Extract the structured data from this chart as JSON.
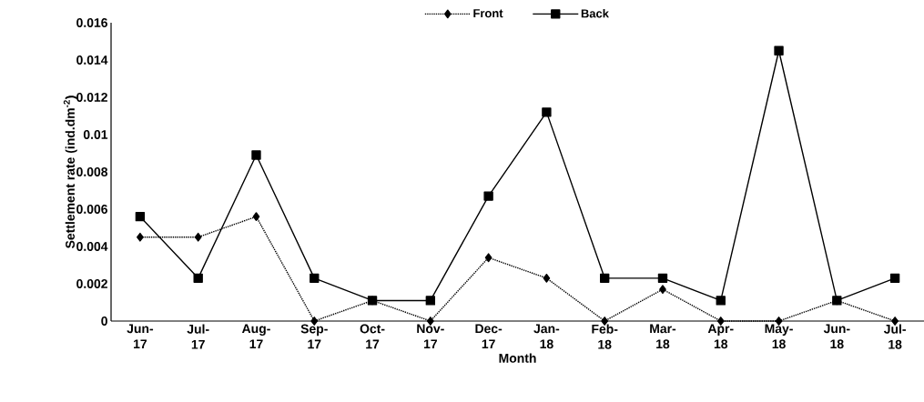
{
  "chart_data": {
    "type": "line",
    "xlabel": "Month",
    "ylabel": "Settlement  rate (ind.dm$^{-2}$)",
    "categories": [
      "Jun-17",
      "Jul-17",
      "Aug-17",
      "Sep-17",
      "Oct-17",
      "Nov-17",
      "Dec-17",
      "Jan-18",
      "Feb-18",
      "Mar-18",
      "Apr-18",
      "May-18",
      "Jun-18",
      "Jul-18"
    ],
    "series": [
      {
        "name": "Front",
        "color": "#000000",
        "marker": "diamond",
        "line_style": "dotted",
        "values": [
          0.0045,
          0.0045,
          0.0056,
          0,
          0.0011,
          0,
          0.0034,
          0.0023,
          0,
          0.0017,
          0,
          0,
          0.0011,
          0
        ]
      },
      {
        "name": "Back",
        "color": "#000000",
        "marker": "square",
        "line_style": "solid",
        "values": [
          0.0056,
          0.0023,
          0.0089,
          0.0023,
          0.0011,
          0.0011,
          0.0067,
          0.0112,
          0.0023,
          0.0023,
          0.0011,
          0.0145,
          0.0011,
          0.0023
        ]
      }
    ],
    "ylim": [
      0,
      0.016
    ],
    "yticks": [
      0,
      0.002,
      0.004,
      0.006,
      0.008,
      0.01,
      0.012,
      0.014,
      0.016
    ],
    "grid": false,
    "legend": "top"
  }
}
